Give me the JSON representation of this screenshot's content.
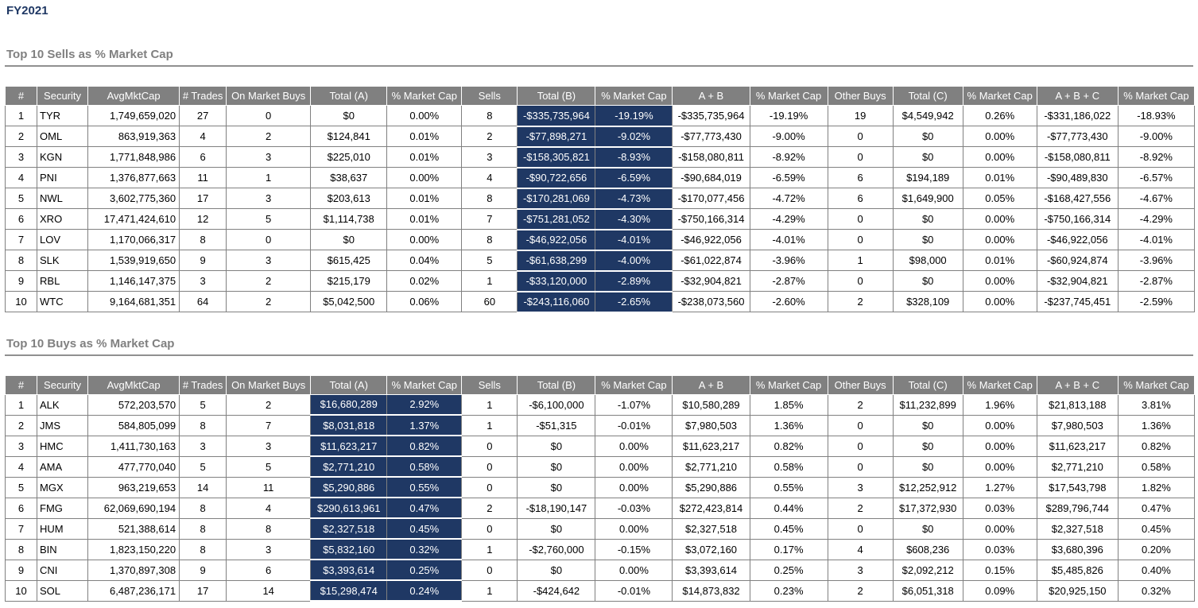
{
  "page": {
    "fiscal_year_label": "FY2021"
  },
  "colors": {
    "highlight": "#1F3864",
    "header_bg": "#808080",
    "title_gray": "#808080",
    "fy_navy": "#1F3864"
  },
  "tables": [
    {
      "title": "Top 10 Sells as % Market Cap",
      "columns": [
        "#",
        "Security",
        "AvgMktCap",
        "# Trades",
        "On Market Buys",
        "Total (A)",
        "% Market Cap",
        "Sells",
        "Total (B)",
        "% Market Cap",
        "A + B",
        "% Market Cap",
        "Other Buys",
        "Total (C)",
        "% Market Cap",
        "A + B + C",
        "% Market Cap"
      ],
      "highlight_columns": [
        8,
        9
      ],
      "rows": [
        [
          "1",
          "TYR",
          "1,749,659,020",
          "27",
          "0",
          "$0",
          "0.00%",
          "8",
          "-$335,735,964",
          "-19.19%",
          "-$335,735,964",
          "-19.19%",
          "19",
          "$4,549,942",
          "0.26%",
          "-$331,186,022",
          "-18.93%"
        ],
        [
          "2",
          "OML",
          "863,919,363",
          "4",
          "2",
          "$124,841",
          "0.01%",
          "2",
          "-$77,898,271",
          "-9.02%",
          "-$77,773,430",
          "-9.00%",
          "0",
          "$0",
          "0.00%",
          "-$77,773,430",
          "-9.00%"
        ],
        [
          "3",
          "KGN",
          "1,771,848,986",
          "6",
          "3",
          "$225,010",
          "0.01%",
          "3",
          "-$158,305,821",
          "-8.93%",
          "-$158,080,811",
          "-8.92%",
          "0",
          "$0",
          "0.00%",
          "-$158,080,811",
          "-8.92%"
        ],
        [
          "4",
          "PNI",
          "1,376,877,663",
          "11",
          "1",
          "$38,637",
          "0.00%",
          "4",
          "-$90,722,656",
          "-6.59%",
          "-$90,684,019",
          "-6.59%",
          "6",
          "$194,189",
          "0.01%",
          "-$90,489,830",
          "-6.57%"
        ],
        [
          "5",
          "NWL",
          "3,602,775,360",
          "17",
          "3",
          "$203,613",
          "0.01%",
          "8",
          "-$170,281,069",
          "-4.73%",
          "-$170,077,456",
          "-4.72%",
          "6",
          "$1,649,900",
          "0.05%",
          "-$168,427,556",
          "-4.67%"
        ],
        [
          "6",
          "XRO",
          "17,471,424,610",
          "12",
          "5",
          "$1,114,738",
          "0.01%",
          "7",
          "-$751,281,052",
          "-4.30%",
          "-$750,166,314",
          "-4.29%",
          "0",
          "$0",
          "0.00%",
          "-$750,166,314",
          "-4.29%"
        ],
        [
          "7",
          "LOV",
          "1,170,066,317",
          "8",
          "0",
          "$0",
          "0.00%",
          "8",
          "-$46,922,056",
          "-4.01%",
          "-$46,922,056",
          "-4.01%",
          "0",
          "$0",
          "0.00%",
          "-$46,922,056",
          "-4.01%"
        ],
        [
          "8",
          "SLK",
          "1,539,919,650",
          "9",
          "3",
          "$615,425",
          "0.04%",
          "5",
          "-$61,638,299",
          "-4.00%",
          "-$61,022,874",
          "-3.96%",
          "1",
          "$98,000",
          "0.01%",
          "-$60,924,874",
          "-3.96%"
        ],
        [
          "9",
          "RBL",
          "1,146,147,375",
          "3",
          "2",
          "$215,179",
          "0.02%",
          "1",
          "-$33,120,000",
          "-2.89%",
          "-$32,904,821",
          "-2.87%",
          "0",
          "$0",
          "0.00%",
          "-$32,904,821",
          "-2.87%"
        ],
        [
          "10",
          "WTC",
          "9,164,681,351",
          "64",
          "2",
          "$5,042,500",
          "0.06%",
          "60",
          "-$243,116,060",
          "-2.65%",
          "-$238,073,560",
          "-2.60%",
          "2",
          "$328,109",
          "0.00%",
          "-$237,745,451",
          "-2.59%"
        ]
      ]
    },
    {
      "title": "Top 10 Buys as % Market Cap",
      "columns": [
        "#",
        "Security",
        "AvgMktCap",
        "# Trades",
        "On Market Buys",
        "Total (A)",
        "% Market Cap",
        "Sells",
        "Total (B)",
        "% Market Cap",
        "A + B",
        "% Market Cap",
        "Other Buys",
        "Total (C)",
        "% Market Cap",
        "A + B + C",
        "% Market Cap"
      ],
      "highlight_columns": [
        5,
        6
      ],
      "rows": [
        [
          "1",
          "ALK",
          "572,203,570",
          "5",
          "2",
          "$16,680,289",
          "2.92%",
          "1",
          "-$6,100,000",
          "-1.07%",
          "$10,580,289",
          "1.85%",
          "2",
          "$11,232,899",
          "1.96%",
          "$21,813,188",
          "3.81%"
        ],
        [
          "2",
          "JMS",
          "584,805,099",
          "8",
          "7",
          "$8,031,818",
          "1.37%",
          "1",
          "-$51,315",
          "-0.01%",
          "$7,980,503",
          "1.36%",
          "0",
          "$0",
          "0.00%",
          "$7,980,503",
          "1.36%"
        ],
        [
          "3",
          "HMC",
          "1,411,730,163",
          "3",
          "3",
          "$11,623,217",
          "0.82%",
          "0",
          "$0",
          "0.00%",
          "$11,623,217",
          "0.82%",
          "0",
          "$0",
          "0.00%",
          "$11,623,217",
          "0.82%"
        ],
        [
          "4",
          "AMA",
          "477,770,040",
          "5",
          "5",
          "$2,771,210",
          "0.58%",
          "0",
          "$0",
          "0.00%",
          "$2,771,210",
          "0.58%",
          "0",
          "$0",
          "0.00%",
          "$2,771,210",
          "0.58%"
        ],
        [
          "5",
          "MGX",
          "963,219,653",
          "14",
          "11",
          "$5,290,886",
          "0.55%",
          "0",
          "$0",
          "0.00%",
          "$5,290,886",
          "0.55%",
          "3",
          "$12,252,912",
          "1.27%",
          "$17,543,798",
          "1.82%"
        ],
        [
          "6",
          "FMG",
          "62,069,690,194",
          "8",
          "4",
          "$290,613,961",
          "0.47%",
          "2",
          "-$18,190,147",
          "-0.03%",
          "$272,423,814",
          "0.44%",
          "2",
          "$17,372,930",
          "0.03%",
          "$289,796,744",
          "0.47%"
        ],
        [
          "7",
          "HUM",
          "521,388,614",
          "8",
          "8",
          "$2,327,518",
          "0.45%",
          "0",
          "$0",
          "0.00%",
          "$2,327,518",
          "0.45%",
          "0",
          "$0",
          "0.00%",
          "$2,327,518",
          "0.45%"
        ],
        [
          "8",
          "BIN",
          "1,823,150,220",
          "8",
          "3",
          "$5,832,160",
          "0.32%",
          "1",
          "-$2,760,000",
          "-0.15%",
          "$3,072,160",
          "0.17%",
          "4",
          "$608,236",
          "0.03%",
          "$3,680,396",
          "0.20%"
        ],
        [
          "9",
          "CNI",
          "1,370,897,308",
          "9",
          "6",
          "$3,393,614",
          "0.25%",
          "0",
          "$0",
          "0.00%",
          "$3,393,614",
          "0.25%",
          "3",
          "$2,092,212",
          "0.15%",
          "$5,485,826",
          "0.40%"
        ],
        [
          "10",
          "SOL",
          "6,487,236,171",
          "17",
          "14",
          "$15,298,474",
          "0.24%",
          "1",
          "-$424,642",
          "-0.01%",
          "$14,873,832",
          "0.23%",
          "2",
          "$6,051,318",
          "0.09%",
          "$20,925,150",
          "0.32%"
        ]
      ]
    }
  ]
}
